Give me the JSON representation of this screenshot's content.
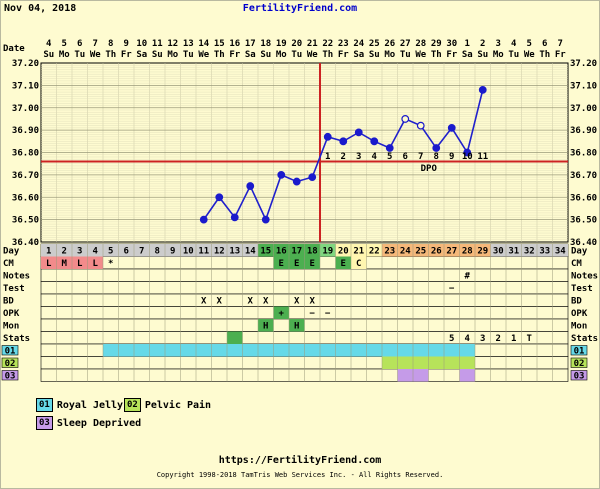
{
  "header": {
    "date": "Nov 04, 2018",
    "site": "FertilityFriend.com"
  },
  "row_labels": {
    "date": "Date",
    "day": "Day",
    "cm": "CM",
    "notes": "Notes",
    "test": "Test",
    "bd": "BD",
    "opk": "OPK",
    "mon": "Mon",
    "stats": "Stats",
    "custom1": "01",
    "custom2": "02",
    "custom3": "03"
  },
  "legend": [
    {
      "code": "01",
      "label": "Royal Jelly",
      "color": "#66d9e8"
    },
    {
      "code": "02",
      "label": "Pelvic Pain",
      "color": "#b7e35a"
    },
    {
      "code": "03",
      "label": "Sleep Deprived",
      "color": "#c59be8"
    }
  ],
  "footer": {
    "url": "https://FertilityFriend.com",
    "copyright": "Copyright 1998-2018 TamTris Web Services Inc. - All Rights Reserved."
  },
  "chart_data": {
    "type": "line",
    "ylim": [
      36.4,
      37.2
    ],
    "y_ticks": [
      "37.20",
      "37.10",
      "37.00",
      "36.90",
      "36.80",
      "36.70",
      "36.60",
      "36.50",
      "36.40"
    ],
    "date_numbers": [
      "4",
      "5",
      "6",
      "7",
      "8",
      "9",
      "10",
      "11",
      "12",
      "13",
      "14",
      "15",
      "16",
      "17",
      "18",
      "19",
      "20",
      "21",
      "22",
      "23",
      "24",
      "25",
      "26",
      "27",
      "28",
      "29",
      "30",
      "1",
      "2",
      "3",
      "4",
      "5",
      "6",
      "7"
    ],
    "weekdays": [
      "Su",
      "Mo",
      "Tu",
      "We",
      "Th",
      "Fr",
      "Sa",
      "Su",
      "Mo",
      "Tu",
      "We",
      "Th",
      "Fr",
      "Sa",
      "Su",
      "Mo",
      "Tu",
      "We",
      "Th",
      "Fr",
      "Sa",
      "Su",
      "Mo",
      "Tu",
      "We",
      "Th",
      "Fr",
      "Sa",
      "Su",
      "Mo",
      "Tu",
      "We",
      "Th",
      "Fr"
    ],
    "days": [
      "1",
      "2",
      "3",
      "4",
      "5",
      "6",
      "7",
      "8",
      "9",
      "10",
      "11",
      "12",
      "13",
      "14",
      "15",
      "16",
      "17",
      "18",
      "19",
      "20",
      "21",
      "22",
      "23",
      "24",
      "25",
      "26",
      "27",
      "28",
      "29",
      "30",
      "31",
      "32",
      "33",
      "34"
    ],
    "temperatures": [
      {
        "day": 11,
        "temp": 36.5
      },
      {
        "day": 12,
        "temp": 36.6
      },
      {
        "day": 13,
        "temp": 36.51
      },
      {
        "day": 14,
        "temp": 36.65
      },
      {
        "day": 15,
        "temp": 36.5
      },
      {
        "day": 16,
        "temp": 36.7
      },
      {
        "day": 17,
        "temp": 36.67
      },
      {
        "day": 18,
        "temp": 36.69
      },
      {
        "day": 19,
        "temp": 36.87
      },
      {
        "day": 20,
        "temp": 36.85
      },
      {
        "day": 21,
        "temp": 36.89
      },
      {
        "day": 22,
        "temp": 36.85
      },
      {
        "day": 23,
        "temp": 36.82
      },
      {
        "day": 24,
        "temp": 36.95,
        "open": true
      },
      {
        "day": 25,
        "temp": 36.92,
        "open": true
      },
      {
        "day": 26,
        "temp": 36.82
      },
      {
        "day": 27,
        "temp": 36.91
      },
      {
        "day": 28,
        "temp": 36.8
      },
      {
        "day": 29,
        "temp": 37.08
      }
    ],
    "coverline": 36.76,
    "ovulation_day": 18,
    "dpo_numbers": [
      "1",
      "2",
      "3",
      "4",
      "5",
      "6",
      "7",
      "8",
      "9",
      "10",
      "11"
    ],
    "dpo_label": "DPO",
    "cm": [
      {
        "day": 1,
        "v": "L"
      },
      {
        "day": 2,
        "v": "M"
      },
      {
        "day": 3,
        "v": "L"
      },
      {
        "day": 4,
        "v": "L"
      },
      {
        "day": 5,
        "v": "*"
      },
      {
        "day": 16,
        "v": "E"
      },
      {
        "day": 17,
        "v": "E"
      },
      {
        "day": 18,
        "v": "E"
      },
      {
        "day": 20,
        "v": "E"
      },
      {
        "day": 21,
        "v": "C"
      }
    ],
    "notes": [
      {
        "day": 28,
        "v": "#"
      }
    ],
    "test": [
      {
        "day": 27,
        "v": "−"
      }
    ],
    "bd": [
      {
        "day": 11,
        "v": "X"
      },
      {
        "day": 12,
        "v": "X"
      },
      {
        "day": 14,
        "v": "X"
      },
      {
        "day": 15,
        "v": "X"
      },
      {
        "day": 17,
        "v": "X"
      },
      {
        "day": 18,
        "v": "X"
      }
    ],
    "opk": [
      {
        "day": 16,
        "v": "+"
      },
      {
        "day": 18,
        "v": "−"
      },
      {
        "day": 19,
        "v": "−"
      }
    ],
    "mon": [
      {
        "day": 15,
        "v": "H"
      },
      {
        "day": 17,
        "v": "H"
      }
    ],
    "stats": [
      {
        "day": 27,
        "v": "5"
      },
      {
        "day": 28,
        "v": "4"
      },
      {
        "day": 29,
        "v": "3"
      },
      {
        "day": 30,
        "v": "2"
      },
      {
        "day": 31,
        "v": "1"
      },
      {
        "day": 32,
        "v": "T"
      }
    ],
    "custom1_range": [
      5,
      28
    ],
    "custom2_range": [
      23,
      28
    ],
    "custom3_days": [
      24,
      25,
      28
    ]
  }
}
